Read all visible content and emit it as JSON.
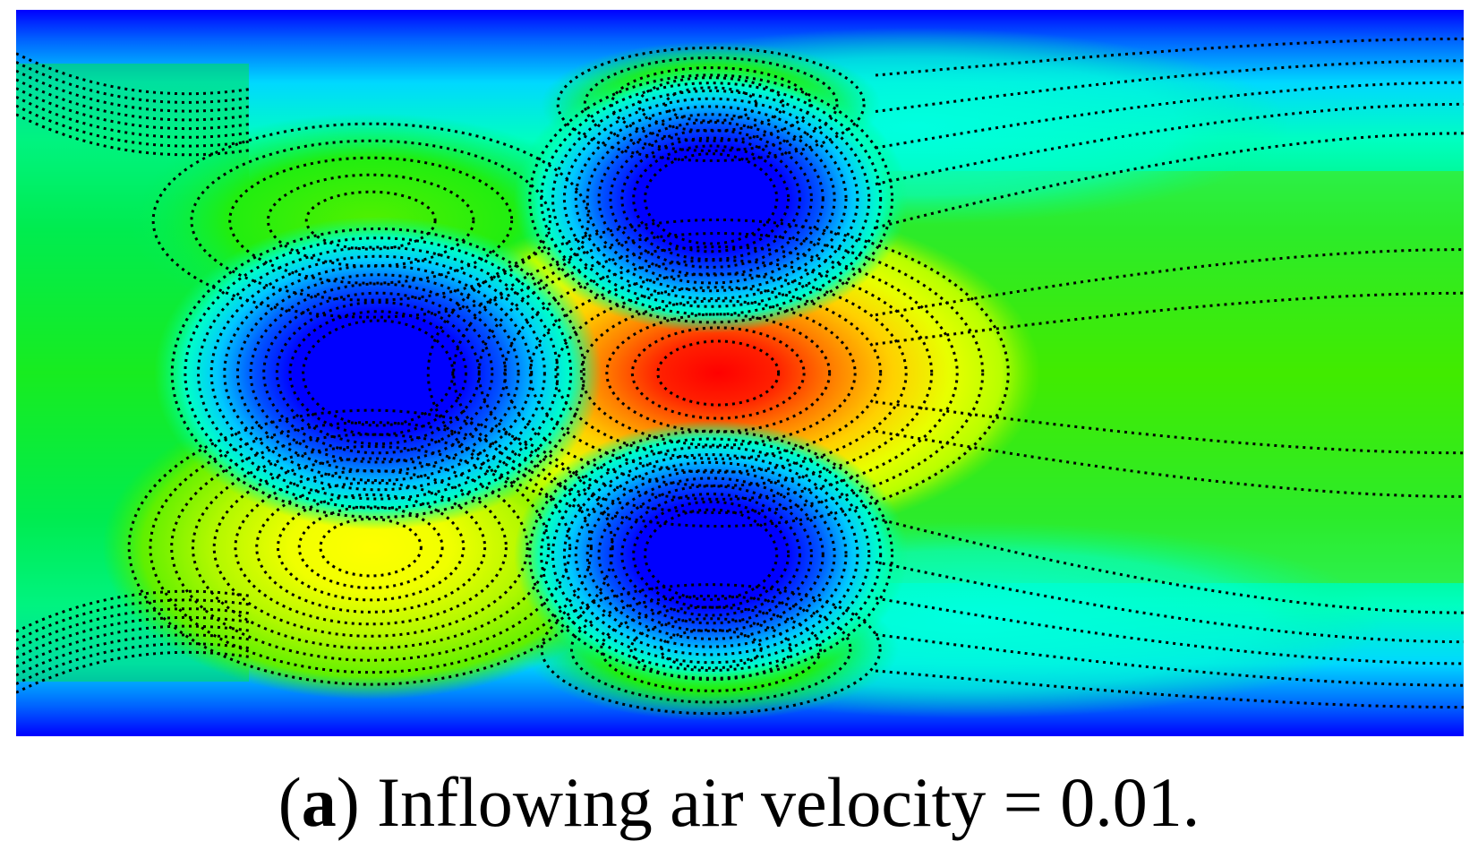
{
  "chart_data": {
    "type": "heatmap",
    "description_label": "",
    "colormap": [
      "#0000ff",
      "#00a0ff",
      "#00ffff",
      "#00ff80",
      "#00e400",
      "#60f000",
      "#c8ff00",
      "#ffff00",
      "#ffa000",
      "#ff4000",
      "#ff0000"
    ],
    "contour_style": "dotted",
    "features": [
      {
        "kind": "low",
        "name": "obstacle-top",
        "x": 0.48,
        "y": 0.26,
        "level": 0.0
      },
      {
        "kind": "low",
        "name": "obstacle-left",
        "x": 0.25,
        "y": 0.5,
        "level": 0.0
      },
      {
        "kind": "low",
        "name": "obstacle-bottom",
        "x": 0.48,
        "y": 0.75,
        "level": 0.0
      },
      {
        "kind": "high",
        "name": "peak-center",
        "x": 0.485,
        "y": 0.5,
        "level": 1.0
      },
      {
        "kind": "high",
        "name": "peak-lower-left",
        "x": 0.245,
        "y": 0.74,
        "level": 0.72
      },
      {
        "kind": "mid",
        "name": "lobe-upper-left",
        "x": 0.245,
        "y": 0.29,
        "level": 0.55
      },
      {
        "kind": "mid",
        "name": "lobe-top",
        "x": 0.48,
        "y": 0.13,
        "level": 0.45
      },
      {
        "kind": "mid",
        "name": "lobe-bottom",
        "x": 0.48,
        "y": 0.88,
        "level": 0.5
      }
    ]
  },
  "caption": {
    "open_paren": "(",
    "label": "a",
    "text": ") Inflowing air velocity = 0.01."
  }
}
